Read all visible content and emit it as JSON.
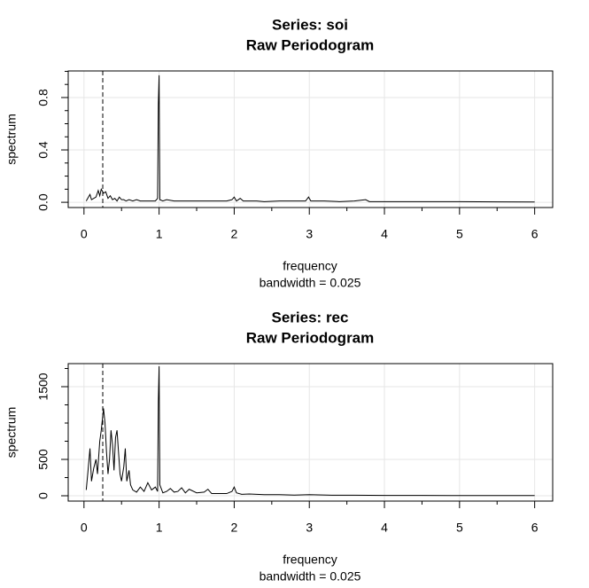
{
  "chart_data": [
    {
      "type": "line",
      "title": "Series: soi",
      "subtitle": "Raw Periodogram",
      "xlabel": "frequency",
      "xlabel_note": "bandwidth = 0.025",
      "ylabel": "spectrum",
      "color": "#000000",
      "grid": true,
      "vline": 0.25,
      "xlim": [
        -0.21,
        6.24
      ],
      "xticks": [
        0,
        1,
        2,
        3,
        4,
        5,
        6
      ],
      "x_minor_ticks": [
        0.5,
        1.5,
        2.5,
        3.5,
        4.5,
        5.5
      ],
      "ylim": [
        -0.04,
        1.003
      ],
      "yticks": [
        {
          "value": 0,
          "label": "0.0"
        },
        {
          "value": 0.4,
          "label": "0.4"
        },
        {
          "value": 0.8,
          "label": "0.8"
        }
      ],
      "y_minor_ticks": [
        0.1,
        0.2,
        0.3,
        0.5,
        0.6,
        0.7,
        0.9,
        1.0
      ],
      "x": [
        0.03,
        0.05,
        0.08,
        0.1,
        0.13,
        0.16,
        0.19,
        0.21,
        0.23,
        0.26,
        0.29,
        0.32,
        0.35,
        0.38,
        0.41,
        0.44,
        0.47,
        0.5,
        0.53,
        0.56,
        0.6,
        0.65,
        0.7,
        0.75,
        0.8,
        0.85,
        0.9,
        0.95,
        0.98,
        0.99,
        1.0,
        1.01,
        1.05,
        1.1,
        1.2,
        1.3,
        1.4,
        1.5,
        1.6,
        1.7,
        1.8,
        1.9,
        1.97,
        2.0,
        2.03,
        2.08,
        2.12,
        2.2,
        2.3,
        2.4,
        2.6,
        2.8,
        2.95,
        2.99,
        3.02,
        3.2,
        3.4,
        3.6,
        3.75,
        3.8,
        4.0,
        4.3,
        4.6,
        5.0,
        5.5,
        6.0
      ],
      "values": [
        0.01,
        0.03,
        0.06,
        0.02,
        0.03,
        0.04,
        0.09,
        0.05,
        0.1,
        0.07,
        0.08,
        0.03,
        0.05,
        0.02,
        0.03,
        0.01,
        0.04,
        0.02,
        0.02,
        0.01,
        0.02,
        0.01,
        0.02,
        0.01,
        0.01,
        0.01,
        0.01,
        0.01,
        0.03,
        0.75,
        0.97,
        0.02,
        0.01,
        0.02,
        0.01,
        0.01,
        0.01,
        0.01,
        0.01,
        0.01,
        0.01,
        0.01,
        0.02,
        0.04,
        0.01,
        0.03,
        0.01,
        0.01,
        0.01,
        0.005,
        0.01,
        0.01,
        0.01,
        0.04,
        0.01,
        0.01,
        0.005,
        0.01,
        0.02,
        0.005,
        0.005,
        0.005,
        0.005,
        0.005,
        0.003,
        0.002
      ]
    },
    {
      "type": "line",
      "title": "Series: rec",
      "subtitle": "Raw Periodogram",
      "xlabel": "frequency",
      "xlabel_note": "bandwidth = 0.025",
      "ylabel": "spectrum",
      "color": "#000000",
      "grid": true,
      "vline": 0.25,
      "xlim": [
        -0.21,
        6.24
      ],
      "xticks": [
        0,
        1,
        2,
        3,
        4,
        5,
        6
      ],
      "x_minor_ticks": [
        0.5,
        1.5,
        2.5,
        3.5,
        4.5,
        5.5
      ],
      "ylim": [
        -73,
        1817
      ],
      "yticks": [
        0,
        500,
        1500
      ],
      "y_minor_ticks": [
        250,
        750,
        1000,
        1250,
        1750
      ],
      "x": [
        0.03,
        0.05,
        0.08,
        0.1,
        0.13,
        0.16,
        0.18,
        0.21,
        0.23,
        0.26,
        0.28,
        0.3,
        0.32,
        0.34,
        0.36,
        0.38,
        0.4,
        0.42,
        0.44,
        0.46,
        0.48,
        0.5,
        0.53,
        0.55,
        0.57,
        0.6,
        0.62,
        0.65,
        0.7,
        0.75,
        0.8,
        0.85,
        0.9,
        0.95,
        0.98,
        0.99,
        1.0,
        1.01,
        1.05,
        1.1,
        1.15,
        1.2,
        1.25,
        1.3,
        1.35,
        1.4,
        1.5,
        1.6,
        1.65,
        1.7,
        1.8,
        1.9,
        1.97,
        2.0,
        2.03,
        2.1,
        2.2,
        2.4,
        2.6,
        2.8,
        3.0,
        3.3,
        3.6,
        4.0,
        4.5,
        5.0,
        5.5,
        6.0
      ],
      "values": [
        80,
        300,
        650,
        200,
        380,
        500,
        300,
        750,
        900,
        1200,
        1000,
        600,
        300,
        500,
        900,
        700,
        350,
        800,
        900,
        600,
        300,
        200,
        400,
        650,
        200,
        350,
        150,
        80,
        50,
        120,
        60,
        180,
        80,
        120,
        60,
        1300,
        1780,
        150,
        40,
        60,
        100,
        50,
        60,
        110,
        40,
        90,
        40,
        50,
        90,
        30,
        30,
        30,
        60,
        120,
        40,
        20,
        25,
        15,
        15,
        10,
        15,
        8,
        8,
        5,
        5,
        3,
        4,
        3
      ]
    }
  ]
}
